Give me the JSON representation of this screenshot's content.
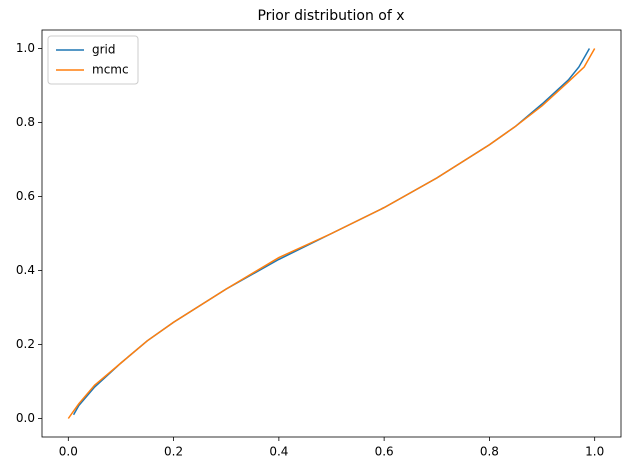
{
  "chart_data": {
    "type": "line",
    "title": "Prior distribution of x",
    "xlim": [
      -0.05,
      1.05
    ],
    "ylim": [
      -0.05,
      1.05
    ],
    "xticks": [
      {
        "value": 0,
        "label": "0.0"
      },
      0.2,
      0.4,
      0.6,
      0.8,
      {
        "value": 1,
        "label": "1.0"
      }
    ],
    "yticks": [
      {
        "value": 0,
        "label": "0.0"
      },
      0.2,
      0.4,
      0.6,
      0.8,
      {
        "value": 1,
        "label": "1.0"
      }
    ],
    "grid": false,
    "legend": "upper left",
    "series": [
      {
        "name": "grid",
        "color": "#1f77b4",
        "x": [
          0.01,
          0.02,
          0.05,
          0.1,
          0.15,
          0.2,
          0.3,
          0.4,
          0.5,
          0.6,
          0.7,
          0.8,
          0.85,
          0.9,
          0.95,
          0.97,
          0.99
        ],
        "values": [
          0.01,
          0.035,
          0.085,
          0.15,
          0.21,
          0.26,
          0.35,
          0.43,
          0.5,
          0.57,
          0.65,
          0.74,
          0.79,
          0.85,
          0.915,
          0.95,
          1.0
        ]
      },
      {
        "name": "mcmc",
        "color": "#ff7f0e",
        "x": [
          0,
          0.01,
          0.02,
          0.05,
          0.1,
          0.15,
          0.2,
          0.3,
          0.4,
          0.5,
          0.6,
          0.7,
          0.8,
          0.85,
          0.9,
          0.95,
          0.98,
          1.0
        ],
        "values": [
          0,
          0.02,
          0.04,
          0.09,
          0.15,
          0.21,
          0.26,
          0.35,
          0.435,
          0.5,
          0.57,
          0.65,
          0.74,
          0.79,
          0.845,
          0.91,
          0.95,
          1.0
        ]
      }
    ]
  }
}
